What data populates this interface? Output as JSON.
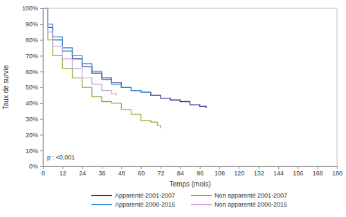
{
  "chart_data": {
    "type": "line",
    "y_label": "Taux de survie",
    "x_label": "Temps (mois)",
    "annotation": "p : <0,001",
    "xlim": [
      0,
      180
    ],
    "xticks": [
      0,
      12,
      24,
      36,
      48,
      60,
      72,
      84,
      96,
      108,
      120,
      132,
      144,
      156,
      168,
      180
    ],
    "ylim": [
      0,
      100
    ],
    "yticks": [
      {
        "value": 0,
        "label": "0%"
      },
      {
        "value": 10,
        "label": "10%"
      },
      {
        "value": 20,
        "label": "20%"
      },
      {
        "value": 30,
        "label": "30%"
      },
      {
        "value": 40,
        "label": "40%"
      },
      {
        "value": 50,
        "label": "50%"
      },
      {
        "value": 60,
        "label": "60%"
      },
      {
        "value": 70,
        "label": "70%"
      },
      {
        "value": 80,
        "label": "80%"
      },
      {
        "value": 90,
        "label": "90%"
      },
      {
        "value": 100,
        "label": "100%"
      }
    ],
    "grid": false,
    "legend": "bottom",
    "line_style": "step",
    "series": [
      {
        "name": "Apparenté 2001-2007",
        "color": "#2f3a8c",
        "x": [
          0,
          3,
          6,
          12,
          18,
          24,
          30,
          36,
          42,
          48,
          54,
          60,
          66,
          72,
          78,
          84,
          90,
          96,
          100
        ],
        "values": [
          100,
          88,
          80,
          73,
          68,
          63,
          59,
          56,
          53,
          50,
          48,
          47,
          45,
          43,
          42,
          41,
          39,
          38,
          37
        ]
      },
      {
        "name": "Non apparenté 2001-2007",
        "color": "#8cb43c",
        "x": [
          0,
          3,
          6,
          12,
          18,
          24,
          30,
          36,
          42,
          48,
          54,
          60,
          66,
          70,
          72
        ],
        "values": [
          100,
          80,
          70,
          62,
          56,
          50,
          44,
          41,
          40,
          36,
          33,
          29,
          28,
          26,
          24
        ]
      },
      {
        "name": "Apparenté 2008-2015",
        "color": "#3a8fd8",
        "x": [
          0,
          3,
          6,
          12,
          18,
          24,
          30,
          36,
          42,
          48,
          54,
          60,
          66
        ],
        "values": [
          100,
          90,
          82,
          75,
          70,
          65,
          60,
          55,
          52,
          50,
          48,
          47,
          46
        ]
      },
      {
        "name": "Non apparenté 2008-2015",
        "color": "#c9a8e2",
        "x": [
          0,
          3,
          6,
          12,
          18,
          24,
          30,
          36,
          42,
          45
        ],
        "values": [
          100,
          85,
          76,
          68,
          62,
          56,
          52,
          48,
          46,
          45
        ]
      }
    ]
  }
}
